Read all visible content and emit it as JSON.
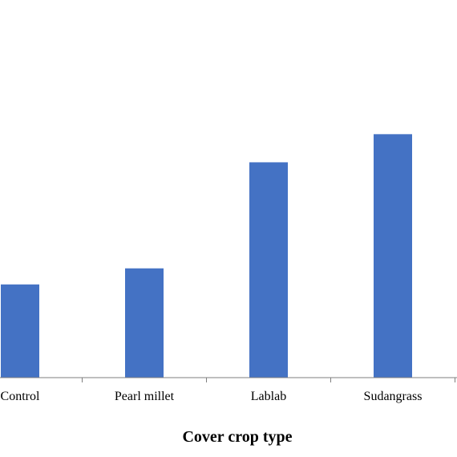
{
  "chart_data": {
    "type": "bar",
    "categories": [
      "Control",
      "Pearl millet",
      "Lablab",
      "Sudangrass"
    ],
    "values": [
      116,
      136,
      268,
      303
    ],
    "ylim": [
      0,
      470
    ],
    "title": "",
    "xlabel": "Cover crop type",
    "ylabel": "",
    "grid": false,
    "legend": "none",
    "bar_color": "#4472C4",
    "axis_color": "#7F7F7F"
  }
}
